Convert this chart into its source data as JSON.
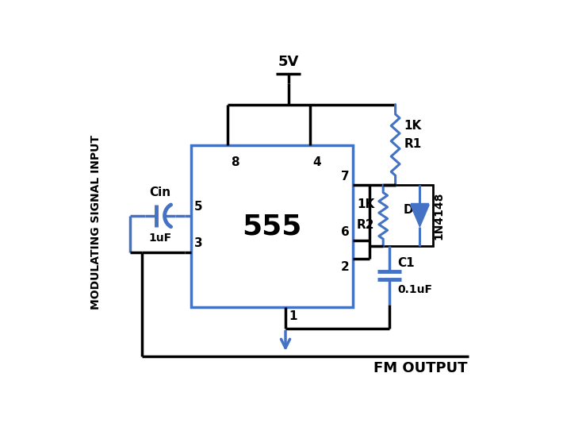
{
  "background_color": "#ffffff",
  "blue_color": "#4472C4",
  "black_color": "#000000",
  "ic_label": "555",
  "labels": {
    "pin8": "8",
    "pin4": "4",
    "pin7": "7",
    "pin6": "6",
    "pin2": "2",
    "pin3": "3",
    "pin5": "5",
    "pin1": "1",
    "R1": "R1",
    "R2": "R2",
    "C1": "C1",
    "Cin": "Cin",
    "R1val": "1K",
    "R2val": "1K",
    "C1val": "0.1uF",
    "Cinval": "1uF",
    "D": "D",
    "diode_name": "1N4148",
    "vcc": "5V",
    "modulating": "MODULATING SIGNAL INPUT",
    "fm_output": "FM OUTPUT"
  },
  "fig_width": 7.1,
  "fig_height": 5.33,
  "dpi": 100
}
